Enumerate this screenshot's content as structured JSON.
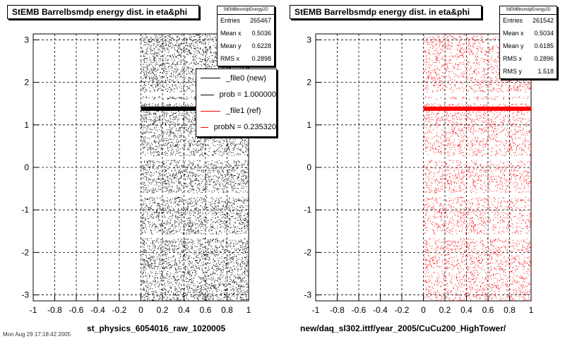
{
  "chart_data": [
    {
      "type": "scatter",
      "title": "StEMB Barrelbsmdp energy dist. in eta&phi",
      "xlabel": "",
      "ylabel": "",
      "xlim": [
        -1,
        1
      ],
      "ylim": [
        -3.14,
        3.14
      ],
      "x_ticks": [
        "-1",
        "-0.8",
        "-0.6",
        "-0.4",
        "-0.2",
        "0",
        "0.2",
        "0.4",
        "0.6",
        "0.8",
        "1"
      ],
      "y_ticks": [
        "3",
        "2",
        "1",
        "0",
        "-1",
        "-2",
        "-3"
      ],
      "grid": true,
      "point_color": "#000000",
      "data_x_range": [
        0,
        1
      ],
      "dense_band_y": 1.38,
      "gap_y": [
        1.72,
        1.55,
        0.22,
        -0.65,
        -1.62
      ],
      "stats": {
        "name": "StEMBbsmdpEnergy2D",
        "rows": [
          {
            "label": "Entries",
            "value": "265467"
          },
          {
            "label": "Mean x",
            "value": "0.5036"
          },
          {
            "label": "Mean y",
            "value": "0.6228"
          },
          {
            "label": "RMS x",
            "value": "0.2898"
          }
        ]
      },
      "legend": [
        {
          "label": "_file0 (new)",
          "color": "#000000"
        },
        {
          "label": "prob = 1.000000",
          "color": "#000000"
        },
        {
          "label": "_file1 (ref)",
          "color": "#ff0000"
        },
        {
          "label": "probN = 0.235320",
          "color": "#ff0000"
        }
      ],
      "footer": "st_physics_6054016_raw_1020005"
    },
    {
      "type": "scatter",
      "title": "StEMB Barrelbsmdp energy dist. in eta&phi",
      "xlabel": "",
      "ylabel": "",
      "xlim": [
        -1,
        1
      ],
      "ylim": [
        -3.14,
        3.14
      ],
      "x_ticks": [
        "-1",
        "-0.8",
        "-0.6",
        "-0.4",
        "-0.2",
        "0",
        "0.2",
        "0.4",
        "0.6",
        "0.8",
        "1"
      ],
      "y_ticks": [
        "3",
        "2",
        "1",
        "0",
        "-1",
        "-2",
        "-3"
      ],
      "grid": true,
      "point_color": "#ff0000",
      "data_x_range": [
        0,
        1
      ],
      "dense_band_y": 1.38,
      "gap_y": [
        1.72,
        1.55,
        0.22,
        -0.65,
        -1.62
      ],
      "stats": {
        "name": "StEMBbsmdpEnergy2D",
        "rows": [
          {
            "label": "Entries",
            "value": "261542"
          },
          {
            "label": "Mean x",
            "value": "0.5034"
          },
          {
            "label": "Mean y",
            "value": "0.6185"
          },
          {
            "label": "RMS x",
            "value": "0.2896"
          },
          {
            "label": "RMS y",
            "value": "1.518"
          }
        ]
      },
      "footer": "new/daq_sl302.ittf/year_2005/CuCu200_HighTower/"
    }
  ],
  "corner_text": "Mon Aug 29 17:18:42 2005"
}
